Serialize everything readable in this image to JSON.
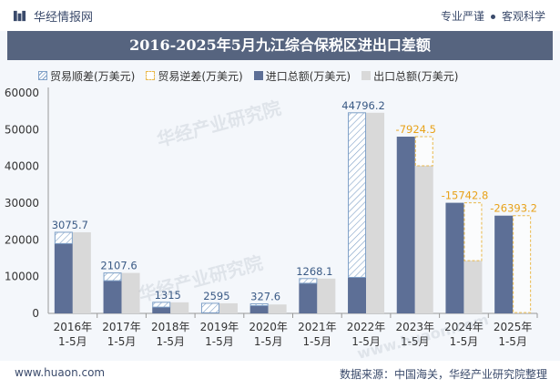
{
  "header": {
    "brand": "华经情报网",
    "slogan_left": "专业严谨",
    "slogan_right": "客观科学"
  },
  "footer": {
    "website": "www.huaon.com",
    "source": "数据来源：中国海关，华经产业研究院整理"
  },
  "watermark": {
    "text": "华经产业研究院",
    "url": "www.huaon.com"
  },
  "colors": {
    "import": "#5d6f96",
    "export": "#d9d9d9",
    "surplus": "#7fa0c7",
    "deficit": "#e9b84a",
    "surplus_label": "#3a5a85",
    "deficit_label": "#e8a21a"
  },
  "chart_data": {
    "type": "bar",
    "title": "2016-2025年5月九江综合保税区进出口差额",
    "categories": [
      {
        "year": "2016年",
        "period": "1-5月"
      },
      {
        "year": "2017年",
        "period": "1-5月"
      },
      {
        "year": "2018年",
        "period": "1-5月"
      },
      {
        "year": "2019年",
        "period": "1-5月"
      },
      {
        "year": "2020年",
        "period": "1-5月"
      },
      {
        "year": "2021年",
        "period": "1-5月"
      },
      {
        "year": "2022年",
        "period": "1-5月"
      },
      {
        "year": "2023年",
        "period": "1-5月"
      },
      {
        "year": "2024年",
        "period": "1-5月"
      },
      {
        "year": "2025年",
        "period": "1-5月"
      }
    ],
    "series": [
      {
        "name": "贸易顺差(万美元)",
        "key": "surplus",
        "values": [
          3075.7,
          2107.6,
          1315,
          2595,
          327.6,
          1268.1,
          44796.2,
          null,
          null,
          null
        ]
      },
      {
        "name": "贸易逆差(万美元)",
        "key": "deficit",
        "values": [
          null,
          null,
          null,
          null,
          null,
          null,
          null,
          -7924.5,
          -15742.8,
          -26393.2
        ]
      },
      {
        "name": "进口总额(万美元)",
        "key": "import",
        "values": [
          19000,
          8900,
          1700,
          150,
          2100,
          8200,
          9800,
          48100,
          30100,
          26600
        ]
      },
      {
        "name": "出口总额(万美元)",
        "key": "export",
        "values": [
          22075.7,
          11007.6,
          3015,
          2745,
          2427.6,
          9468.1,
          54596.2,
          40175.5,
          14357.2,
          206.8
        ]
      }
    ],
    "balance_labels": [
      "3075.7",
      "2107.6",
      "1315",
      "2595",
      "327.6",
      "1268.1",
      "44796.2",
      "-7924.5",
      "-15742.8",
      "-26393.2"
    ],
    "ylim": [
      0,
      60000
    ],
    "yticks": [
      0,
      10000,
      20000,
      30000,
      40000,
      50000,
      60000
    ],
    "ytick_labels": [
      "0",
      "10000",
      "20000",
      "30000",
      "40000",
      "50000",
      "60000"
    ],
    "xlabel": "",
    "ylabel": "",
    "legend_position": "top"
  }
}
